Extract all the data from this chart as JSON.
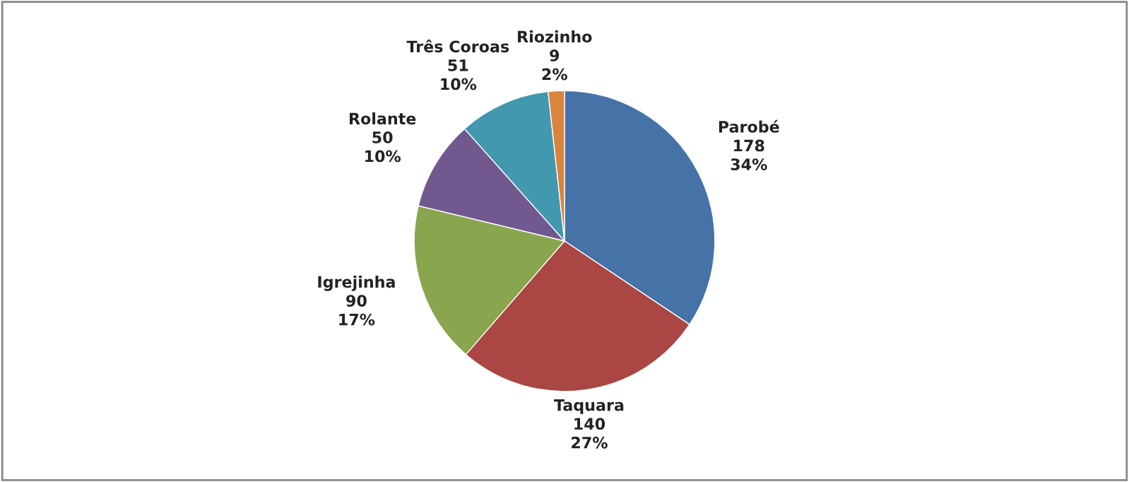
{
  "chart_data": {
    "type": "pie",
    "categories": [
      "Parobé",
      "Taquara",
      "Igrejinha",
      "Rolante",
      "Três Coroas",
      "Riozinho"
    ],
    "values": [
      178,
      140,
      90,
      50,
      51,
      9
    ],
    "colors": [
      "#4572a7",
      "#aa4643",
      "#89a54e",
      "#71588f",
      "#4198af",
      "#db843d"
    ],
    "value_labels": [
      "178\n34%",
      "140\n27%",
      "90\n17%",
      "50\n10%",
      "51\n10%",
      "9\n2%"
    ],
    "legend": false
  }
}
